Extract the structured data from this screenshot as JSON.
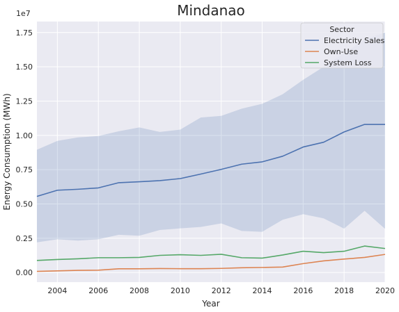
{
  "chart_data": {
    "type": "line",
    "title": "Mindanao",
    "xlabel": "Year",
    "ylabel": "Energy Consumption (MWh)",
    "y_multiplier_label": "1e7",
    "xlim": [
      2003,
      2020
    ],
    "ylim": [
      -700000,
      18300000
    ],
    "x_ticks": [
      2004,
      2006,
      2008,
      2010,
      2012,
      2014,
      2016,
      2018,
      2020
    ],
    "y_ticks": [
      0,
      2500000,
      5000000,
      7500000,
      10000000,
      12500000,
      15000000,
      17500000
    ],
    "y_tick_labels": [
      "0.00",
      "0.25",
      "0.50",
      "0.75",
      "1.00",
      "1.25",
      "1.50",
      "1.75"
    ],
    "grid": true,
    "legend": {
      "title": "Sector",
      "placement": "top-right"
    },
    "x": [
      2003,
      2004,
      2005,
      2006,
      2007,
      2008,
      2009,
      2010,
      2011,
      2012,
      2013,
      2014,
      2015,
      2016,
      2017,
      2018,
      2019,
      2020
    ],
    "series": [
      {
        "name": "Electricity Sales",
        "color": "#4c72b0",
        "values": [
          5550000,
          6000000,
          6070000,
          6170000,
          6550000,
          6620000,
          6700000,
          6850000,
          7180000,
          7520000,
          7900000,
          8070000,
          8480000,
          9150000,
          9500000,
          10250000,
          10800000,
          10800000
        ]
      },
      {
        "name": "Own-Use",
        "color": "#dd8452",
        "values": [
          80000,
          120000,
          160000,
          170000,
          270000,
          270000,
          290000,
          280000,
          280000,
          300000,
          350000,
          370000,
          400000,
          650000,
          850000,
          980000,
          1100000,
          1320000
        ]
      },
      {
        "name": "System Loss",
        "color": "#55a868",
        "values": [
          880000,
          950000,
          1000000,
          1080000,
          1080000,
          1100000,
          1250000,
          1300000,
          1250000,
          1330000,
          1080000,
          1050000,
          1280000,
          1550000,
          1450000,
          1550000,
          1930000,
          1750000
        ]
      }
    ],
    "confidence_band": {
      "series": "Electricity Sales",
      "color": "#4c72b0",
      "lower": [
        2200000,
        2420000,
        2330000,
        2420000,
        2750000,
        2680000,
        3100000,
        3220000,
        3320000,
        3580000,
        3030000,
        2970000,
        3850000,
        4250000,
        3950000,
        3200000,
        4500000,
        3180000
      ],
      "upper": [
        8950000,
        9600000,
        9850000,
        9950000,
        10300000,
        10580000,
        10250000,
        10420000,
        11300000,
        11420000,
        11950000,
        12300000,
        13000000,
        14050000,
        15000000,
        16000000,
        17000000,
        17500000
      ]
    }
  }
}
